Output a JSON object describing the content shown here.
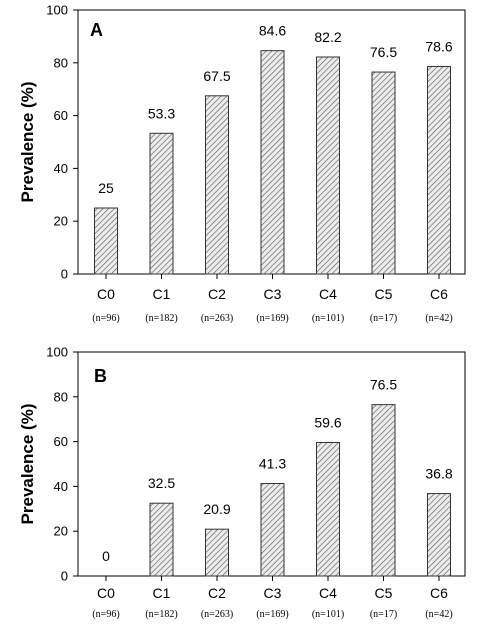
{
  "chart_data": [
    {
      "type": "bar",
      "panel": "A",
      "ylabel": "Prevalence (%)",
      "ylim": [
        0,
        100
      ],
      "yticks": [
        0,
        20,
        40,
        60,
        80,
        100
      ],
      "categories": [
        "C0",
        "C1",
        "C2",
        "C3",
        "C4",
        "C5",
        "C6"
      ],
      "n_labels": [
        "(n=96)",
        "(n=182)",
        "(n=263)",
        "(n=169)",
        "(n=101)",
        "(n=17)",
        "(n=42)"
      ],
      "values": [
        25,
        53.3,
        67.5,
        84.6,
        82.2,
        76.5,
        78.6
      ],
      "value_labels": [
        "25",
        "53.3",
        "67.5",
        "84.6",
        "82.2",
        "76.5",
        "78.6"
      ],
      "bar_fill": "hatched",
      "grid": false
    },
    {
      "type": "bar",
      "panel": "B",
      "ylabel": "Prevalence (%)",
      "ylim": [
        0,
        100
      ],
      "yticks": [
        0,
        20,
        40,
        60,
        80,
        100
      ],
      "categories": [
        "C0",
        "C1",
        "C2",
        "C3",
        "C4",
        "C5",
        "C6"
      ],
      "n_labels": [
        "(n=96)",
        "(n=182)",
        "(n=263)",
        "(n=169)",
        "(n=101)",
        "(n=17)",
        "(n=42)"
      ],
      "values": [
        0,
        32.5,
        20.9,
        41.3,
        59.6,
        76.5,
        36.8
      ],
      "value_labels": [
        "0",
        "32.5",
        "20.9",
        "41.3",
        "59.6",
        "76.5",
        "36.8"
      ],
      "bar_fill": "hatched",
      "grid": false
    }
  ]
}
